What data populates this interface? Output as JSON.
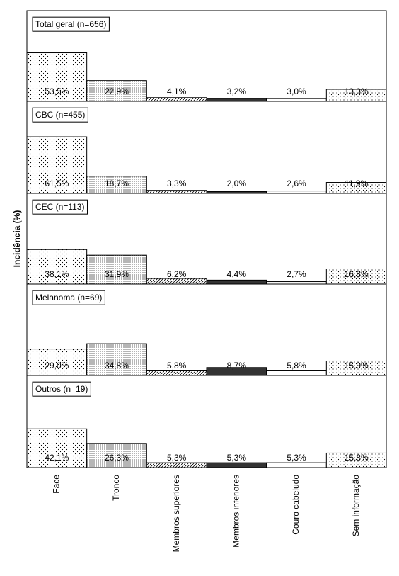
{
  "chart_data": {
    "type": "bar",
    "ylabel": "Incidência (%)",
    "categories": [
      "Face",
      "Tronco",
      "Membros superiores",
      "Membros inferiores",
      "Couro cabeludo",
      "Sem informação"
    ],
    "ylim": [
      0,
      100
    ],
    "series": [
      {
        "name": "Total geral (n=656)",
        "values": [
          53.5,
          22.9,
          4.1,
          3.2,
          3.0,
          13.3
        ],
        "value_labels": [
          "53,5%",
          "22,9%",
          "4,1%",
          "3,2%",
          "3,0%",
          "13,3%"
        ]
      },
      {
        "name": "CBC (n=455)",
        "values": [
          61.5,
          18.7,
          3.3,
          2.0,
          2.6,
          11.9
        ],
        "value_labels": [
          "61,5%",
          "18,7%",
          "3,3%",
          "2,0%",
          "2,6%",
          "11,9%"
        ]
      },
      {
        "name": "CEC (n=113)",
        "values": [
          38.1,
          31.9,
          6.2,
          4.4,
          2.7,
          16.8
        ],
        "value_labels": [
          "38,1%",
          "31,9%",
          "6,2%",
          "4,4%",
          "2,7%",
          "16,8%"
        ]
      },
      {
        "name": "Melanoma (n=69)",
        "values": [
          29.0,
          34.8,
          5.8,
          8.7,
          5.8,
          15.9
        ],
        "value_labels": [
          "29,0%",
          "34,8%",
          "5,8%",
          "8,7%",
          "5,8%",
          "15,9%"
        ]
      },
      {
        "name": "Outros (n=19)",
        "values": [
          42.1,
          26.3,
          5.3,
          5.3,
          5.3,
          15.8
        ],
        "value_labels": [
          "42,1%",
          "26,3%",
          "5,3%",
          "5,3%",
          "5,3%",
          "15,8%"
        ]
      }
    ]
  }
}
